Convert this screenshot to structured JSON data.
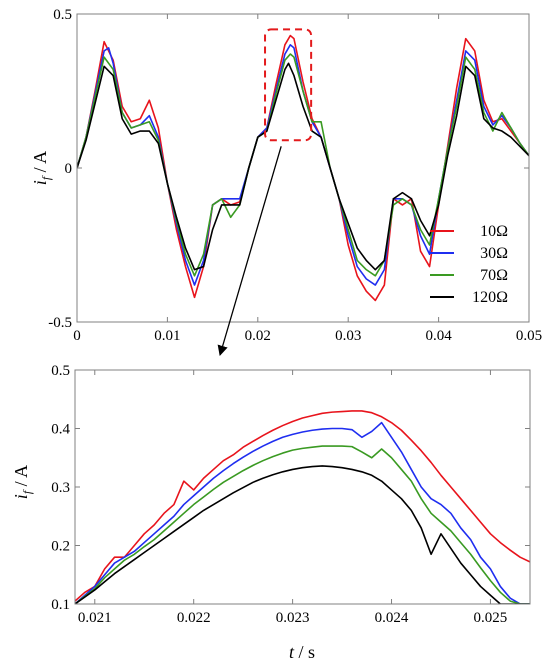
{
  "colors": {
    "10": "#e8141c",
    "30": "#1f2ef0",
    "70": "#3a9a22",
    "120": "#000000"
  },
  "chart_data": [
    {
      "type": "line",
      "title": "",
      "xlabel": "",
      "ylabel": {
        "main": "i",
        "sub": "f",
        "unit": " / A"
      },
      "xlim": [
        0,
        0.05
      ],
      "ylim": [
        -0.5,
        0.5
      ],
      "x_ticks": [
        0,
        0.01,
        0.02,
        0.03,
        0.04,
        0.05
      ],
      "x_tick_labels": [
        "0",
        "0.01",
        "0.02",
        "0.03",
        "0.04",
        "0.05"
      ],
      "y_ticks": [
        -0.5,
        0,
        0.5
      ],
      "y_tick_labels": [
        "-0.5",
        "0",
        "0.5"
      ],
      "legend": {
        "position": "bottom-right",
        "entries": [
          "10Ω",
          "30Ω",
          "70Ω",
          "120Ω"
        ]
      },
      "zoom_region": {
        "x": [
          0.0208,
          0.0259
        ],
        "y": [
          0.09,
          0.45
        ]
      },
      "series": [
        {
          "name": "10Ω",
          "color_key": "10",
          "x": [
            0,
            0.001,
            0.002,
            0.003,
            0.004,
            0.005,
            0.006,
            0.007,
            0.008,
            0.009,
            0.01,
            0.011,
            0.012,
            0.013,
            0.014,
            0.015,
            0.016,
            0.017,
            0.018,
            0.019,
            0.02,
            0.021,
            0.022,
            0.023,
            0.0236,
            0.024,
            0.025,
            0.026,
            0.027,
            0.028,
            0.029,
            0.03,
            0.031,
            0.032,
            0.033,
            0.034,
            0.035,
            0.036,
            0.037,
            0.038,
            0.039,
            0.04,
            0.041,
            0.042,
            0.043,
            0.044,
            0.045,
            0.046,
            0.047,
            0.048,
            0.049,
            0.05
          ],
          "y": [
            0.0,
            0.1,
            0.25,
            0.41,
            0.35,
            0.2,
            0.15,
            0.16,
            0.22,
            0.13,
            -0.05,
            -0.2,
            -0.32,
            -0.42,
            -0.32,
            -0.12,
            -0.1,
            -0.12,
            -0.11,
            0.0,
            0.1,
            0.13,
            0.27,
            0.4,
            0.43,
            0.42,
            0.28,
            0.16,
            0.1,
            0.0,
            -0.1,
            -0.25,
            -0.35,
            -0.4,
            -0.43,
            -0.38,
            -0.1,
            -0.12,
            -0.1,
            -0.27,
            -0.32,
            -0.12,
            0.07,
            0.26,
            0.42,
            0.38,
            0.22,
            0.15,
            0.16,
            0.12,
            0.08,
            0.04
          ]
        },
        {
          "name": "30Ω",
          "color_key": "30",
          "x": [
            0,
            0.001,
            0.002,
            0.003,
            0.0035,
            0.004,
            0.005,
            0.006,
            0.007,
            0.008,
            0.009,
            0.01,
            0.011,
            0.012,
            0.013,
            0.014,
            0.015,
            0.016,
            0.017,
            0.018,
            0.019,
            0.02,
            0.021,
            0.022,
            0.023,
            0.0236,
            0.024,
            0.025,
            0.026,
            0.027,
            0.028,
            0.029,
            0.03,
            0.031,
            0.032,
            0.033,
            0.034,
            0.035,
            0.036,
            0.037,
            0.038,
            0.039,
            0.04,
            0.041,
            0.042,
            0.043,
            0.044,
            0.045,
            0.046,
            0.047,
            0.048,
            0.049,
            0.05
          ],
          "y": [
            0.0,
            0.1,
            0.24,
            0.38,
            0.39,
            0.34,
            0.18,
            0.13,
            0.14,
            0.17,
            0.1,
            -0.05,
            -0.18,
            -0.3,
            -0.38,
            -0.3,
            -0.12,
            -0.1,
            -0.1,
            -0.1,
            0.0,
            0.1,
            0.13,
            0.25,
            0.37,
            0.4,
            0.39,
            0.25,
            0.15,
            0.1,
            0.0,
            -0.1,
            -0.22,
            -0.32,
            -0.36,
            -0.38,
            -0.33,
            -0.1,
            -0.1,
            -0.12,
            -0.22,
            -0.28,
            -0.1,
            0.06,
            0.22,
            0.38,
            0.35,
            0.2,
            0.14,
            0.17,
            0.13,
            0.08,
            0.04
          ]
        },
        {
          "name": "70Ω",
          "color_key": "70",
          "x": [
            0,
            0.001,
            0.002,
            0.003,
            0.004,
            0.005,
            0.006,
            0.007,
            0.008,
            0.009,
            0.01,
            0.011,
            0.012,
            0.013,
            0.014,
            0.015,
            0.016,
            0.017,
            0.018,
            0.019,
            0.02,
            0.021,
            0.022,
            0.023,
            0.0236,
            0.024,
            0.025,
            0.026,
            0.027,
            0.028,
            0.029,
            0.03,
            0.031,
            0.032,
            0.033,
            0.034,
            0.035,
            0.036,
            0.037,
            0.038,
            0.039,
            0.04,
            0.041,
            0.042,
            0.043,
            0.044,
            0.045,
            0.046,
            0.047,
            0.048,
            0.049,
            0.05
          ],
          "y": [
            0.0,
            0.1,
            0.23,
            0.36,
            0.32,
            0.18,
            0.13,
            0.14,
            0.15,
            0.09,
            -0.05,
            -0.17,
            -0.28,
            -0.35,
            -0.28,
            -0.12,
            -0.1,
            -0.16,
            -0.12,
            0.0,
            0.1,
            0.12,
            0.24,
            0.35,
            0.37,
            0.36,
            0.25,
            0.15,
            0.15,
            0.0,
            -0.1,
            -0.2,
            -0.3,
            -0.33,
            -0.35,
            -0.3,
            -0.12,
            -0.1,
            -0.12,
            -0.2,
            -0.25,
            -0.1,
            0.06,
            0.2,
            0.36,
            0.32,
            0.18,
            0.12,
            0.18,
            0.13,
            0.08,
            0.04
          ]
        },
        {
          "name": "120Ω",
          "color_key": "120",
          "x": [
            0,
            0.001,
            0.002,
            0.003,
            0.004,
            0.005,
            0.006,
            0.007,
            0.008,
            0.009,
            0.01,
            0.011,
            0.012,
            0.013,
            0.014,
            0.015,
            0.016,
            0.017,
            0.018,
            0.019,
            0.02,
            0.021,
            0.022,
            0.023,
            0.0234,
            0.024,
            0.025,
            0.026,
            0.027,
            0.028,
            0.029,
            0.03,
            0.031,
            0.032,
            0.033,
            0.034,
            0.035,
            0.036,
            0.037,
            0.038,
            0.039,
            0.04,
            0.041,
            0.042,
            0.043,
            0.044,
            0.045,
            0.046,
            0.047,
            0.048,
            0.049,
            0.05
          ],
          "y": [
            0.0,
            0.09,
            0.21,
            0.33,
            0.3,
            0.16,
            0.11,
            0.12,
            0.12,
            0.08,
            -0.05,
            -0.16,
            -0.26,
            -0.33,
            -0.32,
            -0.2,
            -0.12,
            -0.12,
            -0.12,
            0.0,
            0.1,
            0.12,
            0.22,
            0.32,
            0.34,
            0.3,
            0.2,
            0.12,
            0.1,
            0.0,
            -0.1,
            -0.18,
            -0.26,
            -0.3,
            -0.33,
            -0.3,
            -0.1,
            -0.08,
            -0.1,
            -0.17,
            -0.22,
            -0.12,
            0.04,
            0.17,
            0.33,
            0.3,
            0.16,
            0.13,
            0.12,
            0.1,
            0.07,
            0.04
          ]
        }
      ]
    },
    {
      "type": "line",
      "title": "",
      "xlabel": {
        "main": "t",
        "unit": " / s"
      },
      "ylabel": {
        "main": "i",
        "sub": "f",
        "unit": " / A"
      },
      "xlim": [
        0.0208,
        0.0254
      ],
      "ylim": [
        0.1,
        0.5
      ],
      "x_ticks": [
        0.021,
        0.022,
        0.023,
        0.024,
        0.025
      ],
      "x_tick_labels": [
        "0.021",
        "0.022",
        "0.023",
        "0.024",
        "0.025"
      ],
      "y_ticks": [
        0.1,
        0.2,
        0.3,
        0.4,
        0.5
      ],
      "y_tick_labels": [
        "0.1",
        "0.2",
        "0.3",
        "0.4",
        "0.5"
      ],
      "series": [
        {
          "name": "10Ω",
          "color_key": "10",
          "x": [
            0.0208,
            0.0209,
            0.021,
            0.0211,
            0.0212,
            0.0213,
            0.0214,
            0.0215,
            0.0216,
            0.0217,
            0.0218,
            0.0219,
            0.022,
            0.0221,
            0.0222,
            0.0223,
            0.0224,
            0.0225,
            0.0226,
            0.0227,
            0.0228,
            0.0229,
            0.023,
            0.0231,
            0.0232,
            0.0233,
            0.0234,
            0.0235,
            0.0236,
            0.0237,
            0.0238,
            0.0239,
            0.024,
            0.0241,
            0.0242,
            0.0243,
            0.0244,
            0.0245,
            0.0246,
            0.0247,
            0.0248,
            0.0249,
            0.025,
            0.0251,
            0.0252,
            0.0253,
            0.0254
          ],
          "y": [
            0.105,
            0.12,
            0.13,
            0.16,
            0.18,
            0.18,
            0.2,
            0.22,
            0.235,
            0.255,
            0.27,
            0.31,
            0.295,
            0.315,
            0.33,
            0.345,
            0.355,
            0.368,
            0.378,
            0.388,
            0.397,
            0.405,
            0.412,
            0.418,
            0.422,
            0.426,
            0.428,
            0.429,
            0.43,
            0.43,
            0.427,
            0.42,
            0.41,
            0.397,
            0.38,
            0.362,
            0.342,
            0.32,
            0.3,
            0.28,
            0.26,
            0.24,
            0.22,
            0.205,
            0.192,
            0.18,
            0.172
          ]
        },
        {
          "name": "30Ω",
          "color_key": "30",
          "x": [
            0.0208,
            0.0209,
            0.021,
            0.0211,
            0.0212,
            0.0213,
            0.0214,
            0.0215,
            0.0216,
            0.0217,
            0.0218,
            0.0219,
            0.022,
            0.0221,
            0.0222,
            0.0223,
            0.0224,
            0.0225,
            0.0226,
            0.0227,
            0.0228,
            0.0229,
            0.023,
            0.0231,
            0.0232,
            0.0233,
            0.0234,
            0.0235,
            0.0236,
            0.0237,
            0.0238,
            0.0239,
            0.024,
            0.0241,
            0.0242,
            0.0243,
            0.0244,
            0.0245,
            0.0246,
            0.0247,
            0.0248,
            0.0249,
            0.025,
            0.0251,
            0.0252,
            0.0253,
            0.0254
          ],
          "y": [
            0.1,
            0.115,
            0.13,
            0.15,
            0.17,
            0.18,
            0.19,
            0.205,
            0.22,
            0.235,
            0.25,
            0.27,
            0.285,
            0.3,
            0.315,
            0.328,
            0.34,
            0.351,
            0.361,
            0.37,
            0.378,
            0.385,
            0.39,
            0.394,
            0.397,
            0.399,
            0.4,
            0.4,
            0.398,
            0.385,
            0.395,
            0.41,
            0.385,
            0.36,
            0.33,
            0.3,
            0.28,
            0.27,
            0.255,
            0.23,
            0.21,
            0.18,
            0.16,
            0.13,
            0.11,
            0.1,
            0.1
          ]
        },
        {
          "name": "70Ω",
          "color_key": "70",
          "x": [
            0.0208,
            0.0209,
            0.021,
            0.0211,
            0.0212,
            0.0213,
            0.0214,
            0.0215,
            0.0216,
            0.0217,
            0.0218,
            0.0219,
            0.022,
            0.0221,
            0.0222,
            0.0223,
            0.0224,
            0.0225,
            0.0226,
            0.0227,
            0.0228,
            0.0229,
            0.023,
            0.0231,
            0.0232,
            0.0233,
            0.0234,
            0.0235,
            0.0236,
            0.0237,
            0.0238,
            0.0239,
            0.024,
            0.0241,
            0.0242,
            0.0243,
            0.0244,
            0.0245,
            0.0246,
            0.0247,
            0.0248,
            0.0249,
            0.025,
            0.0251,
            0.0252,
            0.0253,
            0.0254
          ],
          "y": [
            0.1,
            0.113,
            0.126,
            0.145,
            0.16,
            0.175,
            0.185,
            0.198,
            0.21,
            0.225,
            0.24,
            0.255,
            0.27,
            0.283,
            0.296,
            0.308,
            0.318,
            0.328,
            0.337,
            0.345,
            0.352,
            0.358,
            0.363,
            0.366,
            0.368,
            0.37,
            0.37,
            0.37,
            0.369,
            0.36,
            0.35,
            0.365,
            0.35,
            0.33,
            0.31,
            0.28,
            0.255,
            0.24,
            0.225,
            0.205,
            0.185,
            0.162,
            0.14,
            0.12,
            0.105,
            0.1,
            0.1
          ]
        },
        {
          "name": "120Ω",
          "color_key": "120",
          "x": [
            0.0208,
            0.0209,
            0.021,
            0.0211,
            0.0212,
            0.0213,
            0.0214,
            0.0215,
            0.0216,
            0.0217,
            0.0218,
            0.0219,
            0.022,
            0.0221,
            0.0222,
            0.0223,
            0.0224,
            0.0225,
            0.0226,
            0.0227,
            0.0228,
            0.0229,
            0.023,
            0.0231,
            0.0232,
            0.0233,
            0.0234,
            0.0235,
            0.0236,
            0.0237,
            0.0238,
            0.0239,
            0.024,
            0.0241,
            0.0242,
            0.0243,
            0.0244,
            0.0245,
            0.0246,
            0.0247,
            0.0248,
            0.0249,
            0.025,
            0.0251,
            0.0252,
            0.0253,
            0.0254
          ],
          "y": [
            0.1,
            0.112,
            0.124,
            0.138,
            0.152,
            0.164,
            0.176,
            0.188,
            0.2,
            0.212,
            0.224,
            0.236,
            0.248,
            0.26,
            0.27,
            0.28,
            0.29,
            0.299,
            0.308,
            0.315,
            0.321,
            0.326,
            0.33,
            0.333,
            0.335,
            0.336,
            0.335,
            0.333,
            0.33,
            0.326,
            0.32,
            0.31,
            0.295,
            0.28,
            0.26,
            0.23,
            0.185,
            0.22,
            0.195,
            0.17,
            0.15,
            0.13,
            0.115,
            0.1,
            0.1,
            0.1,
            0.1
          ]
        }
      ]
    }
  ]
}
